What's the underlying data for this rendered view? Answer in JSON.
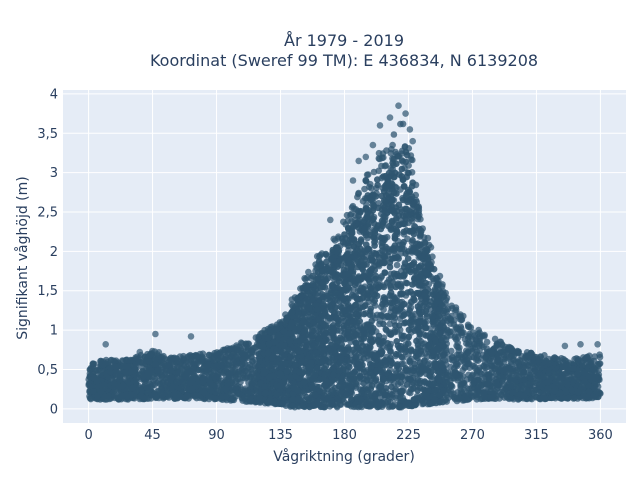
{
  "chart_data": {
    "type": "scatter",
    "title_line1": "År 1979 - 2019",
    "title_line2": "Koordinat (Sweref 99 TM): E 436834, N 6139208",
    "xlabel": "Vågriktning (grader)",
    "ylabel": "Signifikant våghöjd (m)",
    "xlim": [
      -18,
      378
    ],
    "ylim": [
      -0.18,
      4.05
    ],
    "xticks": [
      0,
      45,
      90,
      135,
      180,
      225,
      270,
      315,
      360
    ],
    "xtick_labels": [
      "0",
      "45",
      "90",
      "135",
      "180",
      "225",
      "270",
      "315",
      "360"
    ],
    "yticks": [
      0,
      0.5,
      1,
      1.5,
      2,
      2.5,
      3,
      3.5,
      4
    ],
    "ytick_labels": [
      "0",
      "0,5",
      "1",
      "1,5",
      "2",
      "2,5",
      "3",
      "3,5",
      "4"
    ],
    "grid": true,
    "marker_color": "#2f5570",
    "plot_bg": "#e5ecf6",
    "envelope": {
      "direction": [
        0,
        10,
        20,
        30,
        45,
        60,
        75,
        90,
        105,
        120,
        135,
        145,
        155,
        165,
        175,
        185,
        195,
        205,
        215,
        220,
        225,
        230,
        240,
        250,
        260,
        270,
        285,
        300,
        315,
        330,
        345,
        360
      ],
      "max_height": [
        0.6,
        0.62,
        0.62,
        0.65,
        0.75,
        0.65,
        0.7,
        0.72,
        0.82,
        0.95,
        1.15,
        1.45,
        1.8,
        2.05,
        2.3,
        2.55,
        2.95,
        3.3,
        3.5,
        3.7,
        3.5,
        2.9,
        2.1,
        1.55,
        1.25,
        1.05,
        0.9,
        0.75,
        0.7,
        0.65,
        0.65,
        0.7
      ],
      "min_height": [
        0.12,
        0.12,
        0.12,
        0.12,
        0.13,
        0.13,
        0.13,
        0.12,
        0.1,
        0.08,
        0.04,
        0.02,
        0.02,
        0.02,
        0.02,
        0.02,
        0.02,
        0.02,
        0.02,
        0.02,
        0.03,
        0.04,
        0.06,
        0.08,
        0.1,
        0.12,
        0.12,
        0.12,
        0.12,
        0.13,
        0.13,
        0.14
      ]
    },
    "outliers": [
      {
        "x": 12,
        "y": 0.82
      },
      {
        "x": 36,
        "y": 0.72
      },
      {
        "x": 47,
        "y": 0.95
      },
      {
        "x": 72,
        "y": 0.92
      },
      {
        "x": 190,
        "y": 3.15
      },
      {
        "x": 195,
        "y": 3.2
      },
      {
        "x": 200,
        "y": 3.35
      },
      {
        "x": 205,
        "y": 3.6
      },
      {
        "x": 212,
        "y": 3.7
      },
      {
        "x": 218,
        "y": 3.85
      },
      {
        "x": 223,
        "y": 3.75
      },
      {
        "x": 226,
        "y": 3.55
      },
      {
        "x": 228,
        "y": 3.4
      },
      {
        "x": 170,
        "y": 2.4
      },
      {
        "x": 186,
        "y": 2.9
      },
      {
        "x": 335,
        "y": 0.8
      },
      {
        "x": 346,
        "y": 0.82
      },
      {
        "x": 358,
        "y": 0.82
      },
      {
        "x": 290,
        "y": 0.85
      },
      {
        "x": 272,
        "y": 0.9
      }
    ]
  }
}
